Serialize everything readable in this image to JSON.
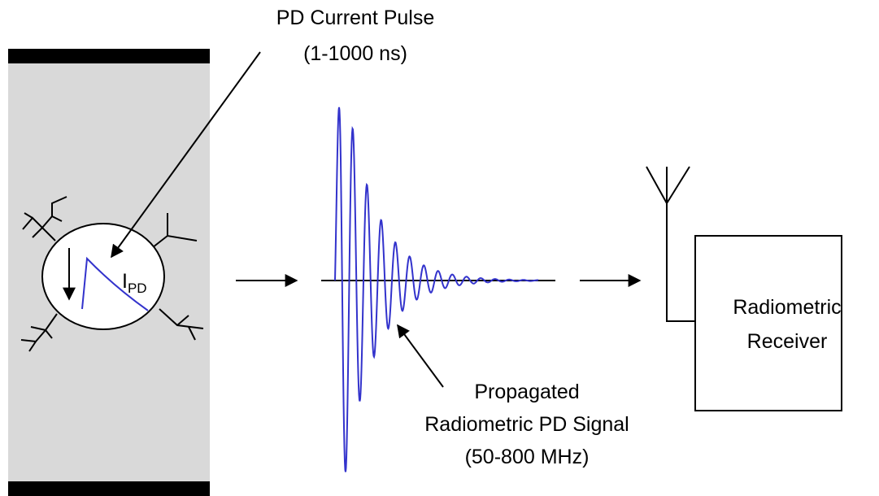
{
  "pulse_label": {
    "title": "PD Current Pulse",
    "range": "(1-1000 ns)"
  },
  "current_label": {
    "symbol": "I",
    "subscript": "PD"
  },
  "signal_label": {
    "line1": "Propagated",
    "line2": "Radiometric PD Signal",
    "range": "(50-800 MHz)"
  },
  "receiver": {
    "line1": "Radiometric",
    "line2": "Receiver"
  }
}
